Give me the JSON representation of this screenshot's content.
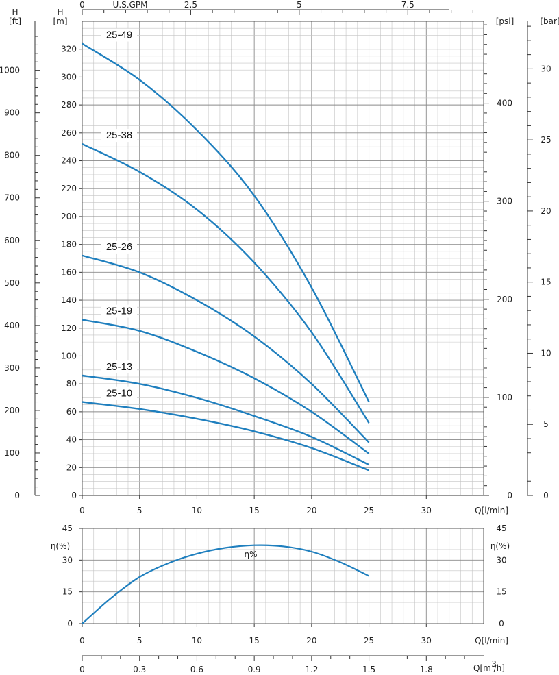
{
  "chart_data": [
    {
      "type": "line",
      "title": "",
      "x_label": "Q[l/min]",
      "x_ticks": [
        0,
        5,
        10,
        15,
        20,
        25,
        30
      ],
      "xlim": [
        0,
        35
      ],
      "top_axis": {
        "label": "U.S.GPM",
        "ticks": [
          "0",
          "2.5",
          "5",
          "7.5"
        ],
        "values": [
          0,
          2.5,
          5,
          7.5
        ]
      },
      "y_label": "H\n[m]",
      "y_ticks": [
        0,
        20,
        40,
        60,
        80,
        100,
        120,
        140,
        160,
        180,
        200,
        220,
        240,
        260,
        280,
        300,
        320
      ],
      "ylim": [
        0,
        340
      ],
      "ft_axis": {
        "label": "H\n[ft]",
        "ticks": [
          0,
          100,
          200,
          300,
          400,
          500,
          600,
          700,
          800,
          900,
          1000
        ]
      },
      "psi_axis": {
        "label": "[psi]",
        "ticks": [
          0,
          100,
          200,
          300,
          400
        ]
      },
      "bar_axis": {
        "label": "[bar]",
        "ticks": [
          0,
          5,
          10,
          15,
          20,
          25,
          30
        ]
      },
      "grid": true,
      "line_color": "#1f7fbe",
      "series": [
        {
          "name": "25-49",
          "x": [
            0,
            5,
            10,
            15,
            20,
            25
          ],
          "y": [
            324,
            298,
            262,
            215,
            149,
            67
          ]
        },
        {
          "name": "25-38",
          "x": [
            0,
            5,
            10,
            15,
            20,
            25
          ],
          "y": [
            252,
            232,
            205,
            167,
            117,
            52
          ]
        },
        {
          "name": "25-26",
          "x": [
            0,
            5,
            10,
            15,
            20,
            25
          ],
          "y": [
            172,
            160,
            140,
            114,
            80,
            38
          ]
        },
        {
          "name": "25-19",
          "x": [
            0,
            5,
            10,
            15,
            20,
            25
          ],
          "y": [
            126,
            118,
            103,
            84,
            60,
            30
          ]
        },
        {
          "name": "25-13",
          "x": [
            0,
            5,
            10,
            15,
            20,
            25
          ],
          "y": [
            86,
            80,
            70,
            57,
            42,
            22
          ]
        },
        {
          "name": "25-10",
          "x": [
            0,
            5,
            10,
            15,
            20,
            25
          ],
          "y": [
            67,
            62,
            55,
            46,
            34,
            18
          ]
        }
      ]
    },
    {
      "type": "line",
      "title": "",
      "x_label": "Q[l/min]",
      "x_ticks": [
        0,
        5,
        10,
        15,
        20,
        25,
        30
      ],
      "xlim": [
        0,
        35
      ],
      "y_label": "η(%)",
      "y_ticks": [
        0,
        15,
        30,
        45
      ],
      "ylim": [
        0,
        45
      ],
      "grid": true,
      "line_color": "#1f7fbe",
      "series": [
        {
          "name": "η%",
          "x": [
            0,
            2.5,
            5,
            7.5,
            10,
            12.5,
            15,
            17.5,
            20,
            22.5,
            25
          ],
          "y": [
            0,
            12,
            22,
            28.5,
            33,
            35.8,
            37,
            36.5,
            34,
            29,
            22.5
          ]
        }
      ]
    }
  ],
  "m3h_axis": {
    "label": "Q[m  /h]",
    "superscript": "3",
    "ticks": [
      "0",
      "0.3",
      "0.6",
      "0.9",
      "1.2",
      "1.5",
      "1.8"
    ],
    "values": [
      0,
      0.3,
      0.6,
      0.9,
      1.2,
      1.5,
      1.8
    ]
  }
}
